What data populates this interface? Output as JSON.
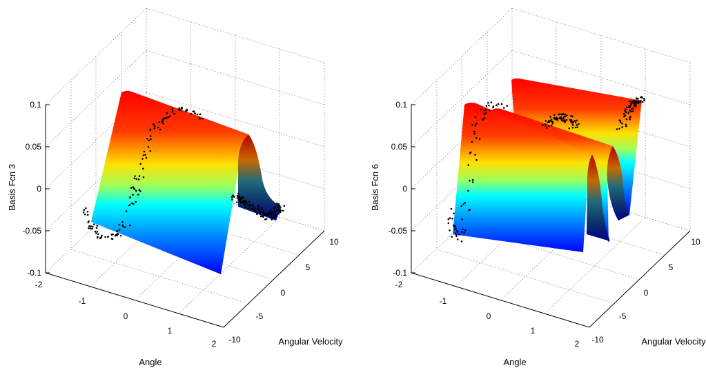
{
  "chart_data": [
    {
      "type": "surface3d",
      "ylabel": "Basis Fcn 3",
      "xlabel": "Angle",
      "zlabel": "Angular Velocity",
      "zlim": [
        -0.1,
        0.1
      ],
      "xlim": [
        -2,
        2
      ],
      "ylim": [
        -10,
        10
      ],
      "ztick_labels": [
        "-0.1",
        "-0.05",
        "0",
        "0.05",
        "0.1"
      ],
      "xtick_labels": [
        "-2",
        "-1",
        "0",
        "1",
        "2"
      ],
      "ytick_labels": [
        "-10",
        "-5",
        "0",
        "5",
        "10"
      ],
      "grid": true,
      "colormap": "jet",
      "surface": {
        "velocity_ridges": [
          0.6
        ],
        "ridge_width": 2.8,
        "peak": 0.1,
        "baseline": -0.1,
        "velocity_range": [
          -10,
          3.8
        ]
      },
      "samples_label": "black sample points"
    },
    {
      "type": "surface3d",
      "ylabel": "Basis Fcn 6",
      "xlabel": "Angle",
      "zlabel": "Angular Velocity",
      "zlim": [
        -0.1,
        0.1
      ],
      "xlim": [
        -2,
        2
      ],
      "ylim": [
        -10,
        10
      ],
      "ztick_labels": [
        "-0.1",
        "-0.05",
        "0",
        "0.05",
        "0.1"
      ],
      "xtick_labels": [
        "-2",
        "-1",
        "0",
        "1",
        "2"
      ],
      "ytick_labels": [
        "-10",
        "-5",
        "0",
        "5",
        "10"
      ],
      "grid": true,
      "colormap": "jet",
      "surface": {
        "velocity_ridges": [
          -6.5,
          0.5,
          6.5
        ],
        "ridge_width": 1.6,
        "peak": 0.1,
        "baseline": -0.1,
        "velocity_range": [
          -10,
          10
        ]
      },
      "samples_label": "black sample points"
    }
  ]
}
